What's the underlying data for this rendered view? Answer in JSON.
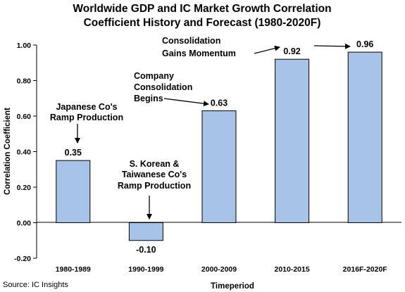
{
  "chart_data": {
    "type": "bar",
    "title": [
      "Worldwide GDP and IC Market Growth Correlation",
      "Coefficient History and Forecast (1980-2020F)"
    ],
    "xlabel": "Timeperiod",
    "ylabel": "Correlation Coefficient",
    "categories": [
      "1980-1989",
      "1990-1999",
      "2000-2009",
      "2010-2015",
      "2016F-2020F"
    ],
    "values": [
      0.35,
      -0.1,
      0.63,
      0.92,
      0.96
    ],
    "value_labels": [
      "0.35",
      "-0.10",
      "0.63",
      "0.92",
      "0.96"
    ],
    "yticks": [
      "1.00",
      "0.80",
      "0.60",
      "0.40",
      "0.20",
      "0.00",
      "-0.20"
    ],
    "ylim": [
      -0.2,
      1.0
    ],
    "grid": false,
    "bar_color": "#a7c3e8",
    "annotations": [
      {
        "lines": [
          "Japanese Co's",
          "Ramp Production"
        ],
        "target": "1980-1989"
      },
      {
        "lines": [
          "S. Korean &",
          "Taiwanese Co's",
          "Ramp Production"
        ],
        "target": "1990-1999"
      },
      {
        "lines": [
          "Company",
          "Consolidation",
          "Begins"
        ],
        "target": "2000-2009"
      },
      {
        "lines": [
          "Consolidation",
          "Gains Momentum"
        ],
        "target": "2010-2015, 2016F-2020F"
      }
    ],
    "source": "Source: IC Insights"
  }
}
